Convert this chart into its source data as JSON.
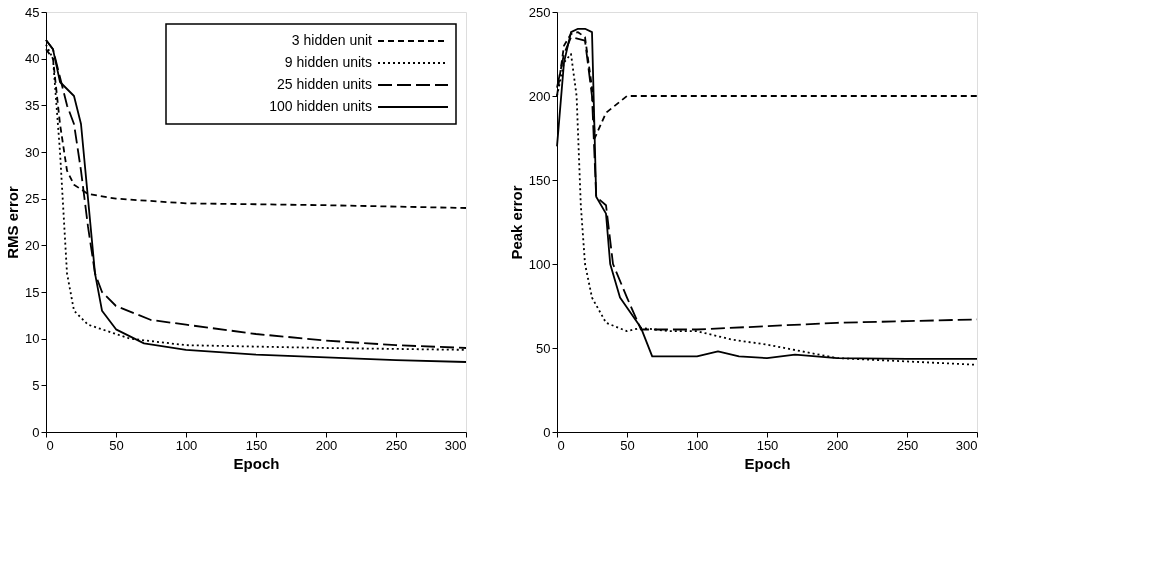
{
  "chart_data": [
    {
      "type": "line",
      "xlabel": "Epoch",
      "ylabel": "RMS error",
      "xlim": [
        0,
        300
      ],
      "ylim": [
        0,
        45
      ],
      "xticks": [
        0,
        50,
        100,
        150,
        200,
        250,
        300
      ],
      "yticks": [
        0,
        5,
        10,
        15,
        20,
        25,
        30,
        35,
        40,
        45
      ],
      "grid": false,
      "legend": "top right",
      "marker": "none",
      "series": [
        {
          "name": "3 hidden unit",
          "color": "#000000",
          "line_style": "dashed",
          "x": [
            0,
            5,
            10,
            15,
            20,
            30,
            50,
            100,
            200,
            300
          ],
          "values": [
            41,
            40,
            33,
            28,
            26.5,
            25.5,
            25,
            24.5,
            24.3,
            24
          ]
        },
        {
          "name": "9 hidden units",
          "color": "#000000",
          "line_style": "dotted",
          "x": [
            0,
            5,
            10,
            15,
            20,
            30,
            40,
            60,
            100,
            200,
            300
          ],
          "values": [
            41.5,
            40,
            30,
            17,
            13,
            11.5,
            11,
            10,
            9.3,
            9,
            8.8
          ]
        },
        {
          "name": "25 hidden units",
          "color": "#000000",
          "line_style": "dashed",
          "x": [
            0,
            5,
            10,
            15,
            20,
            25,
            30,
            35,
            40,
            50,
            75,
            100,
            150,
            200,
            250,
            300
          ],
          "values": [
            42,
            41,
            38,
            35,
            33,
            28,
            22,
            17,
            15,
            13.5,
            12,
            11.5,
            10.5,
            9.8,
            9.3,
            9
          ]
        },
        {
          "name": "100 hidden units",
          "color": "#000000",
          "line_style": "solid",
          "x": [
            0,
            5,
            10,
            20,
            25,
            30,
            35,
            40,
            50,
            70,
            100,
            150,
            200,
            250,
            300
          ],
          "values": [
            42,
            41,
            37.5,
            36,
            33,
            25,
            17,
            13,
            11,
            9.5,
            8.8,
            8.3,
            8,
            7.7,
            7.5
          ]
        }
      ]
    },
    {
      "type": "line",
      "xlabel": "Epoch",
      "ylabel": "Peak error",
      "xlim": [
        0,
        300
      ],
      "ylim": [
        0,
        250
      ],
      "xticks": [
        0,
        50,
        100,
        150,
        200,
        250,
        300
      ],
      "yticks": [
        0,
        50,
        100,
        150,
        200,
        250
      ],
      "grid": false,
      "marker": "none",
      "series": [
        {
          "color": "#000000",
          "line_style": "dashed",
          "x": [
            0,
            5,
            10,
            15,
            20,
            25,
            27,
            35,
            50,
            100,
            200,
            300
          ],
          "values": [
            200,
            230,
            237,
            238,
            235,
            205,
            175,
            190,
            200,
            200,
            200,
            200
          ]
        },
        {
          "color": "#000000",
          "line_style": "dotted",
          "x": [
            0,
            5,
            10,
            14,
            17,
            20,
            25,
            35,
            50,
            60,
            80,
            100,
            125,
            150,
            175,
            200,
            250,
            300
          ],
          "values": [
            200,
            220,
            225,
            200,
            135,
            100,
            80,
            65,
            60,
            62,
            60,
            60,
            55,
            52,
            48,
            44,
            42,
            40
          ]
        },
        {
          "color": "#000000",
          "line_style": "dashed",
          "x": [
            0,
            5,
            10,
            20,
            25,
            28,
            35,
            40,
            50,
            60,
            100,
            150,
            200,
            250,
            300
          ],
          "values": [
            205,
            225,
            235,
            233,
            200,
            140,
            135,
            100,
            80,
            61,
            61,
            63,
            65,
            66,
            67
          ]
        },
        {
          "color": "#000000",
          "line_style": "solid",
          "x": [
            0,
            5,
            10,
            15,
            20,
            25,
            28,
            35,
            38,
            45,
            60,
            68,
            100,
            115,
            130,
            150,
            170,
            200,
            250,
            300
          ],
          "values": [
            170,
            220,
            238,
            240,
            240,
            238,
            140,
            130,
            100,
            80,
            62,
            45,
            45,
            48,
            45,
            44,
            46,
            44,
            43.5,
            43.5
          ]
        }
      ]
    }
  ]
}
